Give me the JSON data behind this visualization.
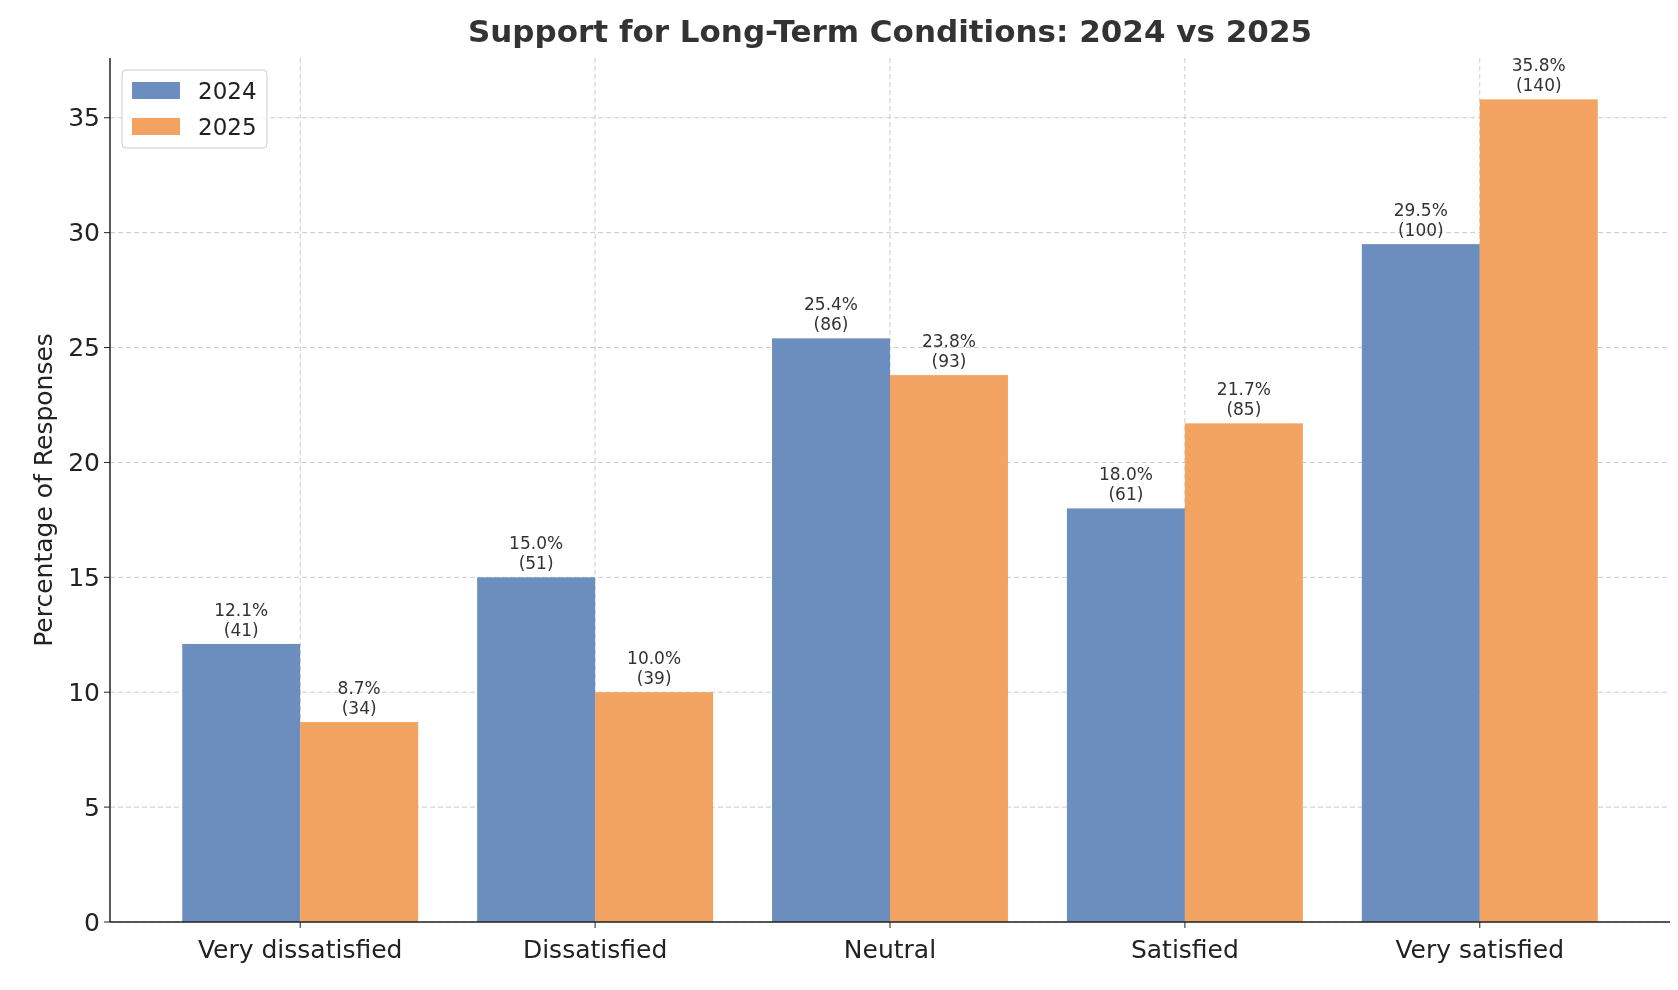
{
  "chart_data": {
    "type": "bar",
    "title": "Support for Long-Term Conditions: 2024 vs 2025",
    "ylabel": "Percentage of Responses",
    "categories": [
      "Very dissatisfied",
      "Dissatisfied",
      "Neutral",
      "Satisfied",
      "Very satisfied"
    ],
    "series": [
      {
        "name": "2024",
        "color": "#6b8ebf",
        "values": [
          12.1,
          15.0,
          25.4,
          18.0,
          29.5
        ],
        "value_labels": [
          "12.1%\n(41)",
          "15.0%\n(51)",
          "25.4%\n(86)",
          "18.0%\n(61)",
          "29.5%\n(100)"
        ]
      },
      {
        "name": "2025",
        "color": "#f2a261",
        "values": [
          8.7,
          10.0,
          23.8,
          21.7,
          35.8
        ],
        "value_labels": [
          "8.7%\n(34)",
          "10.0%\n(39)",
          "23.8%\n(93)",
          "21.7%\n(85)",
          "35.8%\n(140)"
        ]
      }
    ],
    "ylim": [
      0,
      37.6
    ],
    "yticks": [
      0,
      5,
      10,
      15,
      20,
      25,
      30,
      35
    ],
    "grid": true,
    "legend": "top left"
  }
}
